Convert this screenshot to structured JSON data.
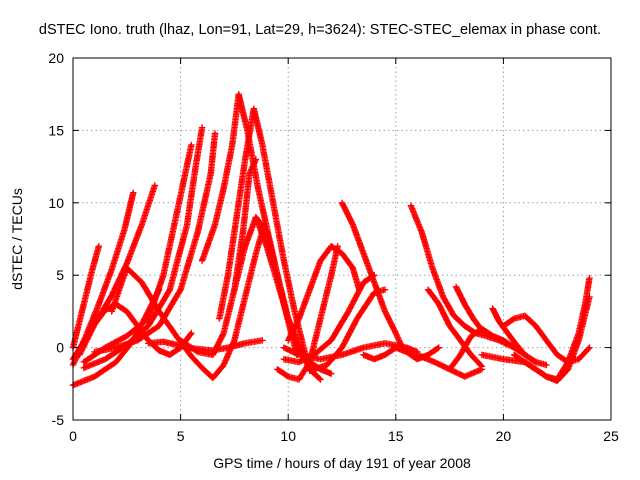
{
  "chart_data": {
    "type": "scatter",
    "title": "dSTEC Iono. truth (lhaz, Lon=91, Lat=29, h=3624): STEC-STEC_elemax in phase cont.",
    "xlabel": "GPS time / hours of day 191 of year 2008",
    "ylabel": "dSTEC  / TECUs",
    "xlim": [
      0,
      25
    ],
    "ylim": [
      -5,
      20
    ],
    "x_ticks": [
      0,
      5,
      10,
      15,
      20,
      25
    ],
    "y_ticks": [
      -5,
      0,
      5,
      10,
      15,
      20
    ],
    "x_tick_labels": [
      "0",
      "5",
      "10",
      "15",
      "20",
      "25"
    ],
    "y_tick_labels": [
      "-5",
      "0",
      "5",
      "10",
      "15",
      "20"
    ],
    "grid": true,
    "legend": "none",
    "marker": "plus",
    "color": "#ff0000",
    "series": [
      {
        "x": [
          0.0,
          0.3,
          0.6,
          0.9,
          1.2
        ],
        "y": [
          0.0,
          1.8,
          3.6,
          5.4,
          7.0
        ]
      },
      {
        "x": [
          0.0,
          0.6,
          1.2,
          1.8,
          2.4,
          2.8
        ],
        "y": [
          -1.2,
          0.8,
          3.0,
          5.4,
          8.2,
          10.7
        ]
      },
      {
        "x": [
          0.3,
          1.0,
          1.8,
          2.5,
          3.2,
          3.8
        ],
        "y": [
          -0.5,
          1.6,
          3.6,
          5.8,
          8.5,
          11.2
        ]
      },
      {
        "x": [
          0.0,
          1.0,
          2.0,
          2.8,
          3.5,
          4.0
        ],
        "y": [
          -2.6,
          -2.0,
          -1.0,
          0.5,
          2.5,
          4.0
        ]
      },
      {
        "x": [
          0.5,
          1.5,
          2.5,
          3.5,
          4.5,
          5.3,
          5.7,
          6.0
        ],
        "y": [
          -1.4,
          -0.8,
          0.2,
          1.5,
          4.0,
          8.5,
          12.5,
          15.2
        ]
      },
      {
        "x": [
          0.5,
          1.5,
          2.5,
          3.5,
          4.2,
          5.0,
          5.5
        ],
        "y": [
          -1.0,
          0.0,
          0.8,
          2.0,
          5.0,
          10.5,
          14.0
        ]
      },
      {
        "x": [
          1.0,
          2.0,
          3.0,
          4.0,
          5.0,
          5.8,
          6.4,
          6.6
        ],
        "y": [
          -0.3,
          0.0,
          0.5,
          1.5,
          4.0,
          8.0,
          12.0,
          14.8
        ]
      },
      {
        "x": [
          0.0,
          0.5,
          1.0,
          1.5,
          2.0,
          2.5,
          3.0,
          3.5,
          4.0,
          4.5,
          5.0,
          5.5
        ],
        "y": [
          -0.8,
          0.4,
          1.6,
          2.6,
          3.0,
          2.5,
          1.5,
          0.5,
          -0.2,
          -0.5,
          0.0,
          1.0
        ]
      },
      {
        "x": [
          1.8,
          2.5,
          3.2,
          4.0,
          4.8,
          5.5,
          6.0,
          6.5,
          7.0,
          7.5,
          8.0,
          8.5,
          8.9
        ],
        "y": [
          2.5,
          5.5,
          4.5,
          2.5,
          0.8,
          -0.6,
          -1.4,
          -2.1,
          -1.2,
          0.5,
          3.5,
          6.5,
          8.5
        ]
      },
      {
        "x": [
          3.5,
          4.2,
          4.8,
          5.3,
          5.8,
          6.5,
          7.2,
          8.0,
          8.8
        ],
        "y": [
          0.3,
          0.4,
          0.2,
          0.0,
          -0.1,
          -0.2,
          0.0,
          0.3,
          0.5
        ]
      },
      {
        "x": [
          5.0,
          5.8,
          6.5,
          7.0,
          7.5,
          7.9,
          8.2,
          8.5
        ],
        "y": [
          0.5,
          -0.3,
          -0.5,
          1.0,
          4.0,
          8.0,
          12.0,
          13.0
        ]
      },
      {
        "x": [
          6.0,
          6.6,
          7.0,
          7.4,
          7.7,
          8.1,
          8.6,
          9.2,
          9.8,
          10.4
        ],
        "y": [
          6.0,
          8.5,
          11.0,
          14.0,
          17.5,
          15.0,
          11.0,
          7.0,
          3.0,
          -0.5
        ]
      },
      {
        "x": [
          6.8,
          7.2,
          7.6,
          8.0,
          8.4,
          8.8,
          9.3,
          9.8,
          10.3,
          10.8
        ],
        "y": [
          2.0,
          5.0,
          9.0,
          13.0,
          16.5,
          14.0,
          10.0,
          6.0,
          2.5,
          -0.5
        ]
      },
      {
        "x": [
          7.5,
          8.0,
          8.5,
          9.0,
          9.5,
          10.0,
          10.5,
          11.0,
          11.5,
          12.0
        ],
        "y": [
          4.0,
          7.0,
          9.0,
          8.0,
          5.0,
          2.0,
          0.0,
          -1.0,
          -1.5,
          -1.8
        ]
      },
      {
        "x": [
          8.5,
          9.0,
          9.5,
          10.0,
          10.5,
          11.0,
          11.5
        ],
        "y": [
          9.0,
          7.0,
          4.5,
          2.0,
          0.0,
          -1.5,
          -2.2
        ]
      },
      {
        "x": [
          9.5,
          10.0,
          10.5,
          11.0,
          11.5,
          12.0,
          12.3
        ],
        "y": [
          -1.5,
          -2.0,
          -2.2,
          -1.0,
          2.0,
          5.0,
          7.0
        ]
      },
      {
        "x": [
          10.0,
          10.5,
          11.0,
          11.5,
          12.0,
          12.5,
          13.0,
          13.3
        ],
        "y": [
          0.5,
          2.0,
          4.0,
          6.0,
          7.0,
          6.5,
          5.5,
          4.0
        ]
      },
      {
        "x": [
          12.5,
          13.0,
          13.5,
          14.0,
          14.5,
          15.0,
          15.3
        ],
        "y": [
          10.0,
          8.5,
          6.5,
          4.5,
          2.5,
          1.0,
          0.0
        ]
      },
      {
        "x": [
          9.8,
          10.5,
          11.2,
          12.0,
          12.8,
          13.5,
          14.0
        ],
        "y": [
          -0.8,
          -1.0,
          -0.5,
          0.5,
          2.5,
          4.5,
          5.0
        ]
      },
      {
        "x": [
          11.0,
          11.8,
          12.5,
          13.2,
          14.0,
          14.5
        ],
        "y": [
          -1.6,
          -1.2,
          0.0,
          2.0,
          3.8,
          4.0
        ]
      },
      {
        "x": [
          9.8,
          10.5,
          11.5,
          12.5,
          13.5,
          14.5,
          15.5,
          16.0
        ],
        "y": [
          0.0,
          -0.5,
          -0.8,
          -0.5,
          0.0,
          0.3,
          0.0,
          -0.3
        ]
      },
      {
        "x": [
          15.7,
          16.2,
          16.7,
          17.2,
          17.7,
          18.2,
          18.7,
          19.2,
          19.8,
          20.5,
          21.0,
          21.5
        ],
        "y": [
          9.8,
          8.0,
          5.5,
          3.5,
          2.2,
          1.5,
          1.0,
          0.8,
          0.5,
          0.0,
          -0.5,
          -1.0
        ]
      },
      {
        "x": [
          16.5,
          17.0,
          17.5,
          18.0,
          18.5,
          19.0
        ],
        "y": [
          4.0,
          3.0,
          1.5,
          0.5,
          -0.5,
          -1.3
        ]
      },
      {
        "x": [
          16.0,
          16.8,
          17.5,
          18.2,
          19.0
        ],
        "y": [
          -0.5,
          -1.0,
          -1.5,
          -2.0,
          -1.5
        ]
      },
      {
        "x": [
          17.5,
          18.0,
          18.5,
          19.0,
          19.5
        ],
        "y": [
          -1.5,
          -0.5,
          0.8,
          1.3,
          0.8
        ]
      },
      {
        "x": [
          17.8,
          18.2,
          18.6,
          19.0,
          19.5,
          20.0,
          20.5
        ],
        "y": [
          4.2,
          3.0,
          2.0,
          1.2,
          0.8,
          0.5,
          0.0
        ]
      },
      {
        "x": [
          19.5,
          19.8,
          20.2,
          20.6,
          21.0,
          21.5,
          22.0
        ],
        "y": [
          2.7,
          1.8,
          1.0,
          0.2,
          -0.5,
          -1.0,
          -1.2
        ]
      },
      {
        "x": [
          20.0,
          20.5,
          21.0,
          21.5,
          22.0,
          22.5,
          23.0,
          23.5,
          24.0
        ],
        "y": [
          1.5,
          2.0,
          2.2,
          1.5,
          0.5,
          -0.5,
          -1.0,
          -0.8,
          0.0
        ]
      },
      {
        "x": [
          19.0,
          20.0,
          21.0,
          21.5,
          22.0,
          22.5,
          23.0,
          23.5,
          23.8,
          24.0
        ],
        "y": [
          -0.5,
          -0.8,
          -1.0,
          -1.5,
          -2.0,
          -2.2,
          -1.0,
          1.0,
          3.0,
          4.8
        ]
      },
      {
        "x": [
          20.5,
          21.0,
          21.5,
          22.0,
          22.5,
          23.0,
          23.5,
          24.0
        ],
        "y": [
          -0.5,
          -1.0,
          -1.5,
          -2.0,
          -2.3,
          -1.5,
          0.5,
          3.5
        ]
      },
      {
        "x": [
          13.5,
          14.0,
          14.5,
          15.0,
          15.5,
          16.0,
          16.5,
          17.0
        ],
        "y": [
          -0.5,
          -0.8,
          -0.5,
          0.0,
          -0.3,
          -0.8,
          -0.5,
          0.0
        ]
      }
    ]
  }
}
